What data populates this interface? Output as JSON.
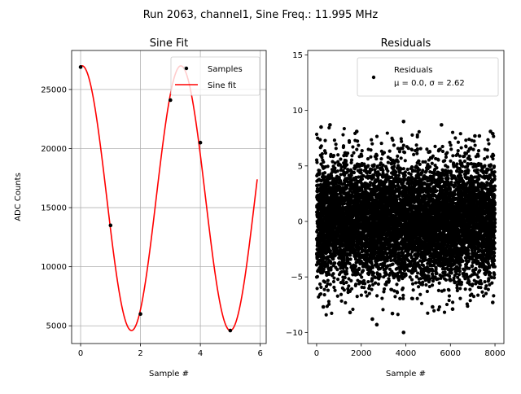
{
  "figure": {
    "suptitle": "Run 2063, channel1, Sine Freq.: 11.995 MHz"
  },
  "chart_data": [
    {
      "type": "line",
      "title": "Sine Fit",
      "xlabel": "Sample #",
      "ylabel": "ADC Counts",
      "xlim": [
        -0.3,
        6.2
      ],
      "ylim": [
        3500,
        28300
      ],
      "xticks": [
        "0",
        "2",
        "4",
        "6"
      ],
      "yticks": [
        "5000",
        "10000",
        "15000",
        "20000",
        "25000"
      ],
      "grid": true,
      "legend": {
        "placement": "top-right",
        "entries": [
          "Samples",
          "Sine fit"
        ]
      },
      "series": [
        {
          "name": "Samples",
          "style": "scatter",
          "color": "#000000",
          "x": [
            0,
            1,
            2,
            3,
            3.5,
            4,
            5
          ],
          "y": [
            26900,
            13500,
            6000,
            24100,
            26800,
            20500,
            4600
          ]
        },
        {
          "name": "Sine fit",
          "style": "line",
          "color": "#ff0000",
          "model": {
            "offset": 15800,
            "amplitude": 11200,
            "period": 3.3,
            "phase_x": 0.05,
            "x_range": [
              0,
              5.9
            ]
          }
        }
      ]
    },
    {
      "type": "scatter",
      "title": "Residuals",
      "xlabel": "Sample #",
      "ylabel": "",
      "xlim": [
        -400,
        8400
      ],
      "ylim": [
        -11,
        15.4
      ],
      "xticks": [
        "0",
        "2000",
        "4000",
        "6000",
        "8000"
      ],
      "yticks": [
        "−10",
        "−5",
        "0",
        "5",
        "10",
        "15"
      ],
      "grid": false,
      "legend": {
        "placement": "top-right",
        "entries": [
          "Residuals",
          "μ = 0.0, σ = 2.62"
        ]
      },
      "series": [
        {
          "name": "Residuals",
          "color": "#000000",
          "summary": {
            "n_points": 8000,
            "mu": 0.0,
            "sigma": 2.62,
            "x_range": [
              0,
              8000
            ]
          },
          "outliers": [
            [
              3900,
              9.0
            ],
            [
              600,
              8.7
            ],
            [
              200,
              8.5
            ],
            [
              1800,
              8.1
            ],
            [
              5600,
              8.7
            ],
            [
              7100,
              7.7
            ],
            [
              7300,
              7.7
            ],
            [
              7800,
              8.1
            ],
            [
              7900,
              7.9
            ],
            [
              3900,
              -10.0
            ],
            [
              2700,
              -9.3
            ],
            [
              2500,
              -8.8
            ],
            [
              1500,
              -8.2
            ],
            [
              300,
              -7.7
            ],
            [
              6100,
              -7.9
            ],
            [
              7900,
              -7.3
            ],
            [
              3400,
              -8.3
            ],
            [
              5200,
              -7.7
            ]
          ]
        }
      ]
    }
  ]
}
